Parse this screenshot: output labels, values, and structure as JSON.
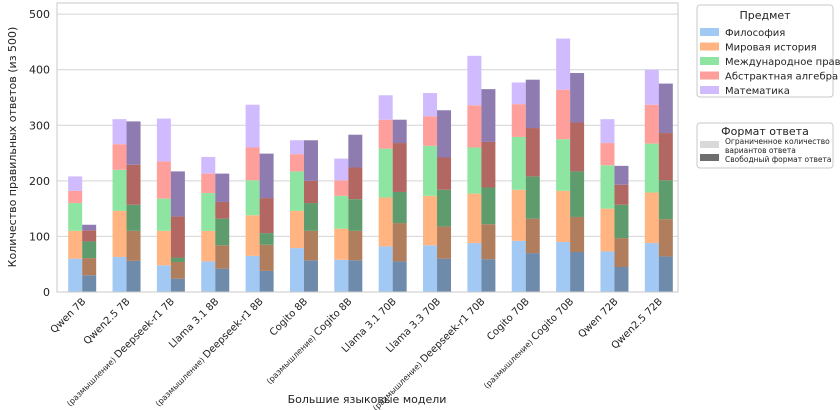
{
  "chart_data": {
    "type": "bar",
    "stacked": true,
    "grouped": true,
    "xlabel": "Большие языковые модели",
    "ylabel": "Количество правильных ответов (из 500)",
    "ylim": [
      0,
      520
    ],
    "yticks": [
      0,
      100,
      200,
      300,
      400,
      500
    ],
    "grid": true,
    "categories": [
      {
        "name": "Qwen 7B",
        "prefix": ""
      },
      {
        "name": "Qwen2.5 7B",
        "prefix": ""
      },
      {
        "name": "Deepseek-r1 7B",
        "prefix": "(размышление)"
      },
      {
        "name": "Llama 3.1 8B",
        "prefix": ""
      },
      {
        "name": "Deepseek-r1 8B",
        "prefix": "(размышление)"
      },
      {
        "name": "Cogito 8B",
        "prefix": ""
      },
      {
        "name": "Cogito 8B",
        "prefix": "(размышление)"
      },
      {
        "name": "Llama 3.1 70B",
        "prefix": ""
      },
      {
        "name": "Llama 3.3 70B",
        "prefix": ""
      },
      {
        "name": "Deepseek-r1 70B",
        "prefix": "(размышление)"
      },
      {
        "name": "Cogito 70B",
        "prefix": ""
      },
      {
        "name": "Cogito 70B",
        "prefix": "(размышление)"
      },
      {
        "name": "Qwen 72B",
        "prefix": ""
      },
      {
        "name": "Qwen2.5 72B",
        "prefix": ""
      }
    ],
    "subjects": [
      {
        "name": "Философия",
        "color": "#a1c9f4",
        "dark": "#6f8bab"
      },
      {
        "name": "Мировая история",
        "color": "#ffb482",
        "dark": "#b07e5c"
      },
      {
        "name": "Международное право",
        "color": "#8de5a1",
        "dark": "#5e9b6d"
      },
      {
        "name": "Абстрактная алгебра",
        "color": "#ff9f9b",
        "dark": "#b36763"
      },
      {
        "name": "Математика",
        "color": "#d0bbff",
        "dark": "#8e7cb1"
      }
    ],
    "formats": [
      {
        "name": "Ограниченное количество вариантов ответа",
        "color": "#d9d9d9"
      },
      {
        "name": "Свободный формат ответа",
        "color": "#6e6e6e"
      }
    ],
    "mc_values": [
      [
        60,
        50,
        50,
        22,
        26
      ],
      [
        63,
        83,
        74,
        46,
        45
      ],
      [
        48,
        62,
        58,
        67,
        77
      ],
      [
        55,
        55,
        68,
        35,
        30
      ],
      [
        65,
        73,
        63,
        59,
        77
      ],
      [
        79,
        67,
        71,
        31,
        25
      ],
      [
        58,
        56,
        59,
        28,
        39
      ],
      [
        82,
        88,
        88,
        52,
        44
      ],
      [
        84,
        89,
        90,
        53,
        42
      ],
      [
        88,
        89,
        83,
        76,
        89
      ],
      [
        92,
        92,
        95,
        59,
        39
      ],
      [
        90,
        92,
        93,
        89,
        92
      ],
      [
        73,
        77,
        78,
        40,
        43
      ],
      [
        88,
        91,
        88,
        70,
        63
      ]
    ],
    "free_values": [
      [
        30,
        31,
        30,
        20,
        10
      ],
      [
        56,
        54,
        47,
        72,
        78
      ],
      [
        24,
        30,
        8,
        74,
        81
      ],
      [
        42,
        42,
        48,
        30,
        51
      ],
      [
        38,
        47,
        21,
        63,
        80
      ],
      [
        57,
        53,
        50,
        40,
        73
      ],
      [
        57,
        53,
        57,
        57,
        59
      ],
      [
        55,
        69,
        56,
        88,
        42
      ],
      [
        60,
        58,
        66,
        58,
        85
      ],
      [
        59,
        63,
        66,
        82,
        95
      ],
      [
        70,
        62,
        76,
        87,
        87
      ],
      [
        72,
        63,
        82,
        88,
        89
      ],
      [
        45,
        52,
        60,
        36,
        34
      ],
      [
        64,
        67,
        70,
        85,
        89
      ]
    ],
    "legend_title": "Предмет",
    "format_legend_title": "Формат ответа",
    "legend_position": "right"
  },
  "text": {
    "ylabel": "Количество правильных ответов (из 500)",
    "xlabel": "Большие языковые модели",
    "legend_title": "Предмет",
    "format_title": "Формат ответа",
    "format_mc_1": "Ограниченное количество",
    "format_mc_2": "вариантов ответа",
    "format_free": "Свободный формат ответа"
  }
}
